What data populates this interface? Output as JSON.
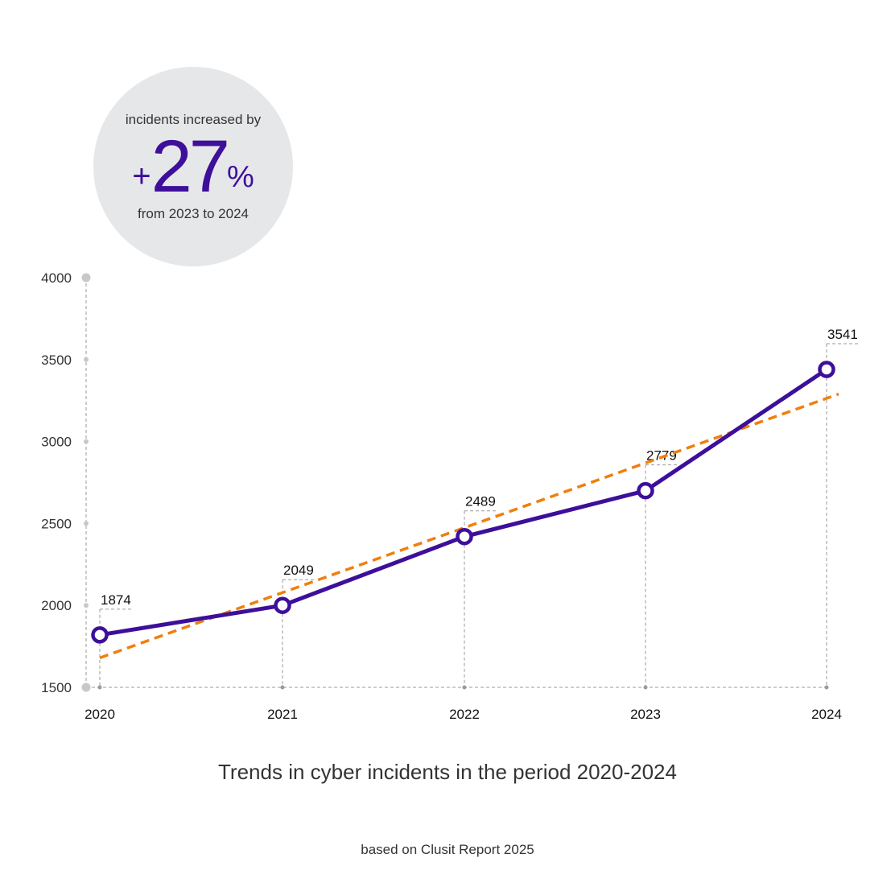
{
  "badge": {
    "top_text": "incidents increased by",
    "plus": "+",
    "number": "27",
    "percent": "%",
    "bottom_text": "from 2023 to 2024"
  },
  "chart_data": {
    "type": "line",
    "title": "Trends in cyber incidents in the period 2020-2024",
    "xlabel": "",
    "ylabel": "",
    "categories": [
      "2020",
      "2021",
      "2022",
      "2023",
      "2024"
    ],
    "series": [
      {
        "values": [
          1874,
          2049,
          2489,
          2779,
          3541
        ],
        "plotted": [
          1820,
          2000,
          2420,
          2700,
          3440
        ],
        "color": "#3d0f9a"
      }
    ],
    "trendline": {
      "style": "dashed",
      "color": "#f07f0c",
      "start": 1680,
      "end": 3290
    },
    "ylim": [
      1500,
      4000
    ],
    "yticks": [
      1500,
      2000,
      2500,
      3000,
      3500,
      4000
    ],
    "grid": false,
    "legend": "none"
  },
  "source_note": "based on Clusit Report 2025",
  "colors": {
    "accent": "#3d0f9a",
    "trend": "#f07f0c",
    "badge_bg": "#e6e7e9",
    "guide": "#9a9a9a"
  }
}
